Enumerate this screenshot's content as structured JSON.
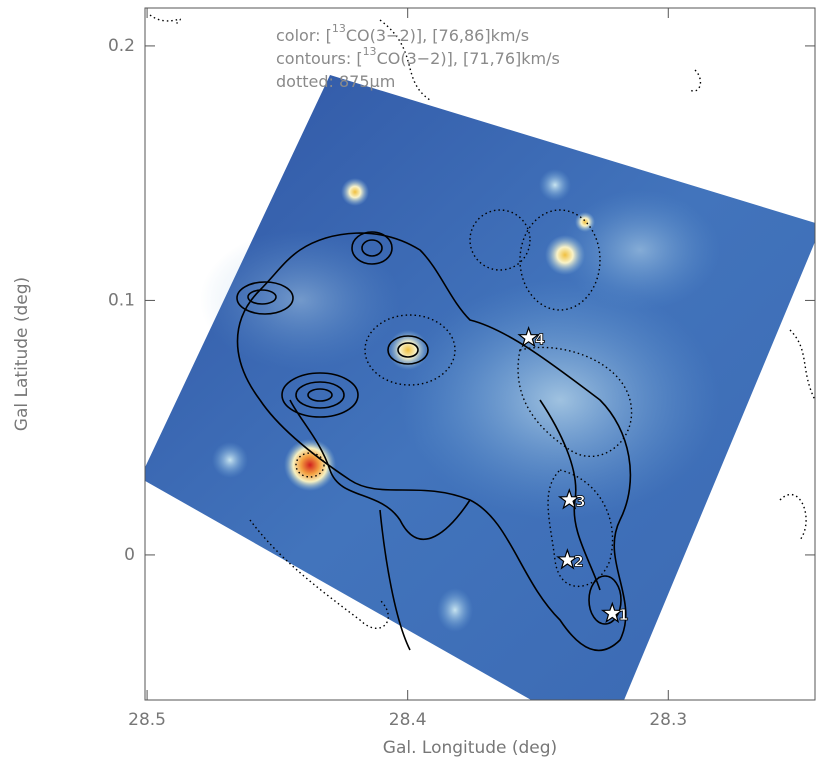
{
  "chart_data": {
    "type": "map",
    "annotations": [
      [
        {
          "text": "color: ["
        },
        {
          "text": "13",
          "sup": true
        },
        {
          "text": "CO(3−2)], [76,86]km/s"
        }
      ],
      [
        {
          "text": "contours: ["
        },
        {
          "text": "13",
          "sup": true
        },
        {
          "text": "CO(3−2)], [71,76]km/s"
        }
      ],
      [
        {
          "text": "dotted: 875μm"
        }
      ]
    ],
    "x_label": "Gal. Longitude (deg)",
    "y_label": "Gal Latitude (deg)",
    "xlim": [
      28.5008,
      28.2437
    ],
    "ylim": [
      -0.057,
      0.2149
    ],
    "xticks": [
      {
        "value": 28.5,
        "label": "28.5"
      },
      {
        "value": 28.4,
        "label": "28.4"
      },
      {
        "value": 28.3,
        "label": "28.3"
      }
    ],
    "yticks": [
      {
        "value": 0,
        "label": "0"
      },
      {
        "value": 0.1,
        "label": "0.1"
      },
      {
        "value": 0.2,
        "label": "0.2"
      }
    ],
    "points": {
      "labels": [
        "1",
        "2",
        "3",
        "4"
      ],
      "x": [
        28.3215,
        28.3387,
        28.338,
        28.3536
      ],
      "y": [
        -0.023,
        -0.002,
        0.0216,
        0.0853
      ]
    }
  }
}
